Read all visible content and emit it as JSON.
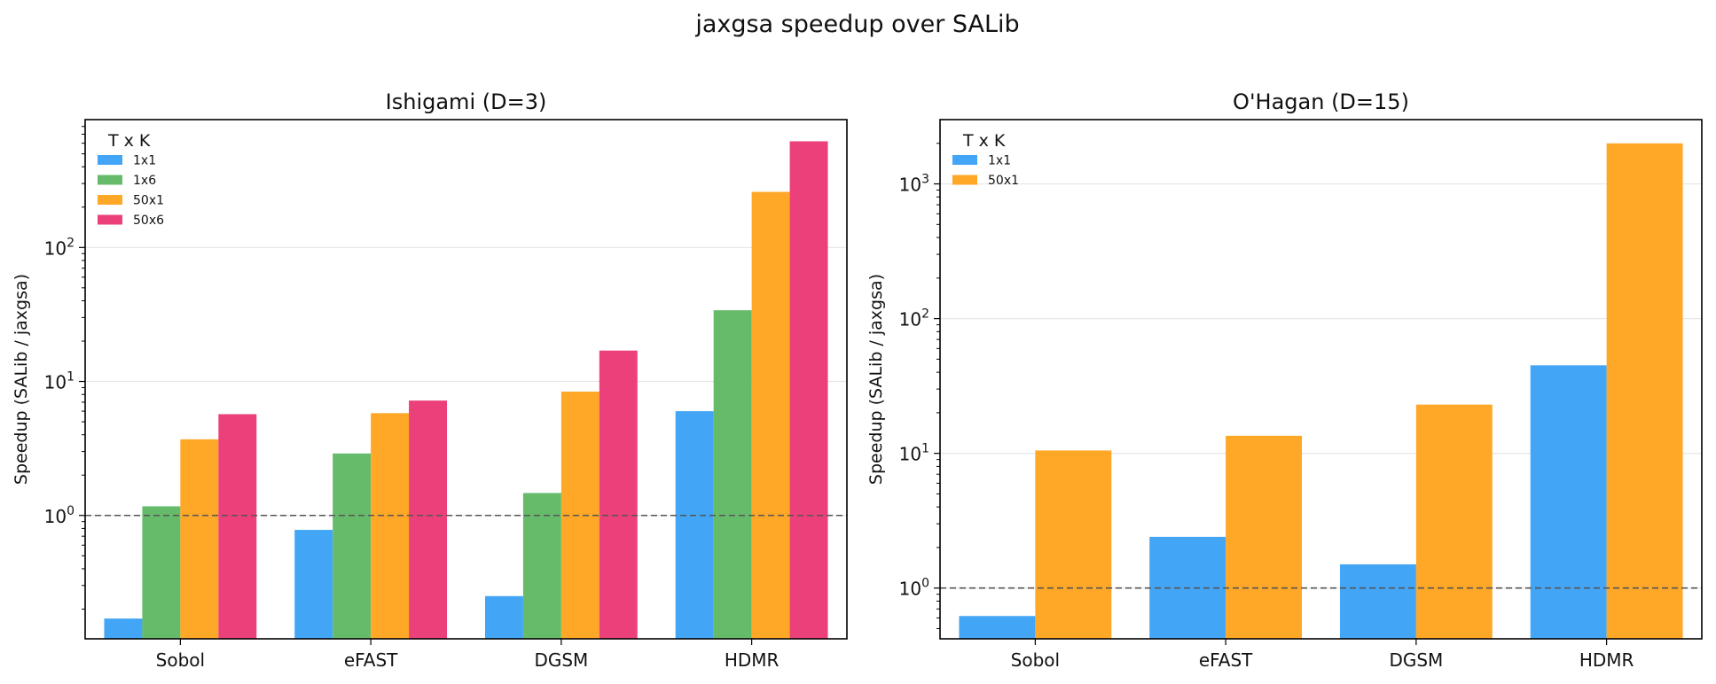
{
  "figure": {
    "suptitle": "jaxgsa speedup over SALib"
  },
  "colors": {
    "1x1": "#42A5F5",
    "1x6": "#66BB6A",
    "50x1": "#FFA726",
    "50x6": "#EC407A",
    "reference_line": "#555555",
    "grid": "#e6e6e6"
  },
  "chart_data": [
    {
      "type": "bar",
      "title": "Ishigami (D=3)",
      "xlabel": "",
      "ylabel": "Speedup (SALib / jaxgsa)",
      "yscale": "log",
      "ylim": [
        0.12,
        900
      ],
      "yticks": [
        1,
        10,
        100
      ],
      "ytick_labels": [
        [
          "10",
          "0"
        ],
        [
          "10",
          "1"
        ],
        [
          "10",
          "2"
        ]
      ],
      "reference_line": 1,
      "grid": "y",
      "legend": {
        "title": "T x K",
        "position": "top-left"
      },
      "categories": [
        "Sobol",
        "eFAST",
        "DGSM",
        "HDMR"
      ],
      "series": [
        {
          "name": "1x1",
          "values": [
            0.17,
            0.78,
            0.25,
            6.0
          ]
        },
        {
          "name": "1x6",
          "values": [
            1.17,
            2.9,
            1.47,
            34
          ]
        },
        {
          "name": "50x1",
          "values": [
            3.7,
            5.8,
            8.4,
            260
          ]
        },
        {
          "name": "50x6",
          "values": [
            5.7,
            7.2,
            17,
            620
          ]
        }
      ]
    },
    {
      "type": "bar",
      "title": "O'Hagan (D=15)",
      "xlabel": "",
      "ylabel": "Speedup (SALib / jaxgsa)",
      "yscale": "log",
      "ylim": [
        0.42,
        3000
      ],
      "yticks": [
        1,
        10,
        100,
        1000
      ],
      "ytick_labels": [
        [
          "10",
          "0"
        ],
        [
          "10",
          "1"
        ],
        [
          "10",
          "2"
        ],
        [
          "10",
          "3"
        ]
      ],
      "reference_line": 1,
      "grid": "y",
      "legend": {
        "title": "T x K",
        "position": "top-left"
      },
      "categories": [
        "Sobol",
        "eFAST",
        "DGSM",
        "HDMR"
      ],
      "series": [
        {
          "name": "1x1",
          "values": [
            0.62,
            2.4,
            1.5,
            45
          ]
        },
        {
          "name": "50x1",
          "values": [
            10.5,
            13.5,
            23,
            2000
          ]
        }
      ]
    }
  ]
}
